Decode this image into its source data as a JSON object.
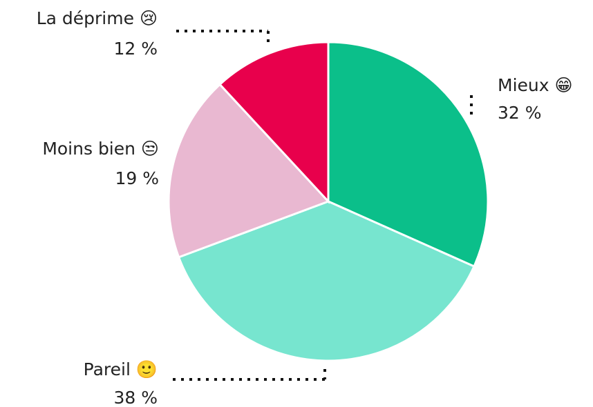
{
  "chart_data": {
    "type": "pie",
    "categories": [
      "Mieux 😁",
      "Pareil 🙂",
      "Moins bien 😒",
      "La déprime 😢"
    ],
    "values": [
      32,
      38,
      19,
      12
    ],
    "value_labels": [
      "32 %",
      "38 %",
      "19 %",
      "12 %"
    ],
    "colors": [
      "#0bbf8a",
      "#77e5cf",
      "#e9b8d1",
      "#e8004c"
    ]
  }
}
